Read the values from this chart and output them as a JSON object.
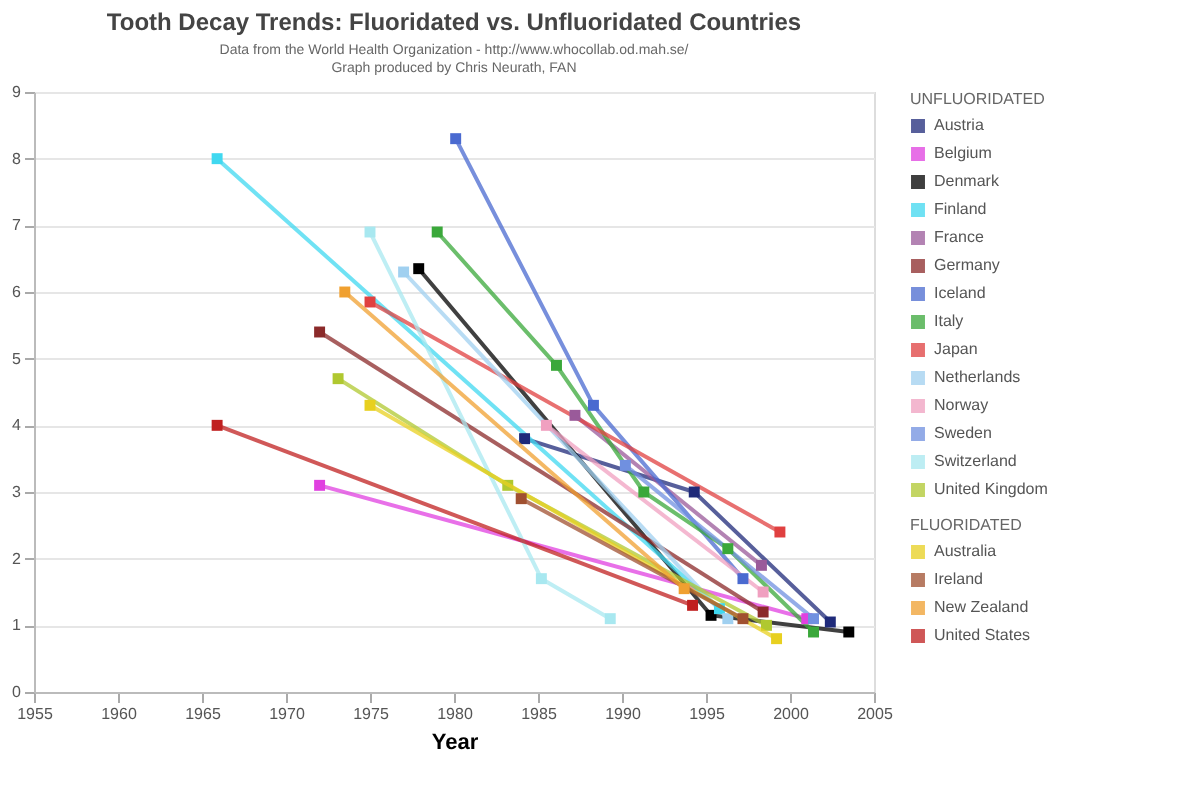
{
  "chart_data": {
    "type": "line",
    "title": "Tooth Decay Trends:  Fluoridated vs. Unfluoridated Countries",
    "subtitle": [
      "Data from the World Health Organization - http://www.whocollab.od.mah.se/",
      "Graph produced by Chris Neurath, FAN"
    ],
    "xlabel": "Year",
    "legend_title": [
      "UNFLUORIDATED",
      "FLUORIDATED"
    ],
    "xlim": [
      1955,
      2005
    ],
    "xticks": [
      1955,
      1960,
      1965,
      1970,
      1975,
      1980,
      1985,
      1990,
      1995,
      2000,
      2005
    ],
    "ylim": [
      0,
      9
    ],
    "yticks": [
      0,
      1,
      2,
      3,
      4,
      5,
      6,
      7,
      8,
      9
    ],
    "grid": "y",
    "legend": "right",
    "marker": "square",
    "line_style": "solid",
    "series": [
      {
        "name": "Austria",
        "color": "#1f2a7a",
        "x": [
          1984.2,
          1994.3,
          2002.4
        ],
        "values": [
          3.8,
          3.0,
          1.05
        ]
      },
      {
        "name": "Belgium",
        "color": "#e040e0",
        "x": [
          1972,
          2001
        ],
        "values": [
          3.1,
          1.1
        ]
      },
      {
        "name": "Denmark",
        "color": "#000000",
        "x": [
          1977.9,
          1995.3,
          2003.5
        ],
        "values": [
          6.35,
          1.15,
          0.9
        ]
      },
      {
        "name": "Finland",
        "color": "#40d8f0",
        "x": [
          1965.9,
          1995.8
        ],
        "values": [
          8.0,
          1.25
        ]
      },
      {
        "name": "France",
        "color": "#9a5a9a",
        "x": [
          1987.2,
          1998.3
        ],
        "values": [
          4.15,
          1.9
        ]
      },
      {
        "name": "Germany",
        "color": "#8b2a2a",
        "x": [
          1972,
          1998.4
        ],
        "values": [
          5.4,
          1.2
        ]
      },
      {
        "name": "Iceland",
        "color": "#4a6ad0",
        "x": [
          1980.1,
          1988.3,
          1997.2
        ],
        "values": [
          8.3,
          4.3,
          1.7
        ]
      },
      {
        "name": "Italy",
        "color": "#3aa83a",
        "x": [
          1979,
          1986.1,
          1991.3,
          1996.3,
          2001.4
        ],
        "values": [
          6.9,
          4.9,
          3.0,
          2.15,
          0.9
        ]
      },
      {
        "name": "Japan",
        "color": "#e04040",
        "x": [
          1975,
          1999.4
        ],
        "values": [
          5.85,
          2.4
        ]
      },
      {
        "name": "Netherlands",
        "color": "#a0d0f0",
        "x": [
          1977,
          1996.3
        ],
        "values": [
          6.3,
          1.1
        ]
      },
      {
        "name": "Norway",
        "color": "#f0a0c0",
        "x": [
          1985.5,
          1998.4
        ],
        "values": [
          4.0,
          1.5
        ]
      },
      {
        "name": "Sweden",
        "color": "#7090e0",
        "x": [
          1990.2,
          2001.4
        ],
        "values": [
          3.4,
          1.1
        ]
      },
      {
        "name": "Switzerland",
        "color": "#a8e8f0",
        "x": [
          1975,
          1985.2,
          1989.3
        ],
        "values": [
          6.9,
          1.7,
          1.1
        ]
      },
      {
        "name": "United Kingdom",
        "color": "#b0c830",
        "x": [
          1973.1,
          1983.2,
          1998.6
        ],
        "values": [
          4.7,
          3.1,
          1.0
        ]
      },
      {
        "name": "Australia",
        "color": "#e8d020",
        "x": [
          1975,
          1999.2
        ],
        "values": [
          4.3,
          0.8
        ]
      },
      {
        "name": "Ireland",
        "color": "#a05030",
        "x": [
          1984,
          1997.2
        ],
        "values": [
          2.9,
          1.1
        ]
      },
      {
        "name": "New Zealand",
        "color": "#f0a030",
        "x": [
          1973.5,
          1993.7
        ],
        "values": [
          6.0,
          1.55
        ]
      },
      {
        "name": "United States",
        "color": "#c02020",
        "x": [
          1965.9,
          1994.2
        ],
        "values": [
          4.0,
          1.3
        ]
      }
    ]
  }
}
